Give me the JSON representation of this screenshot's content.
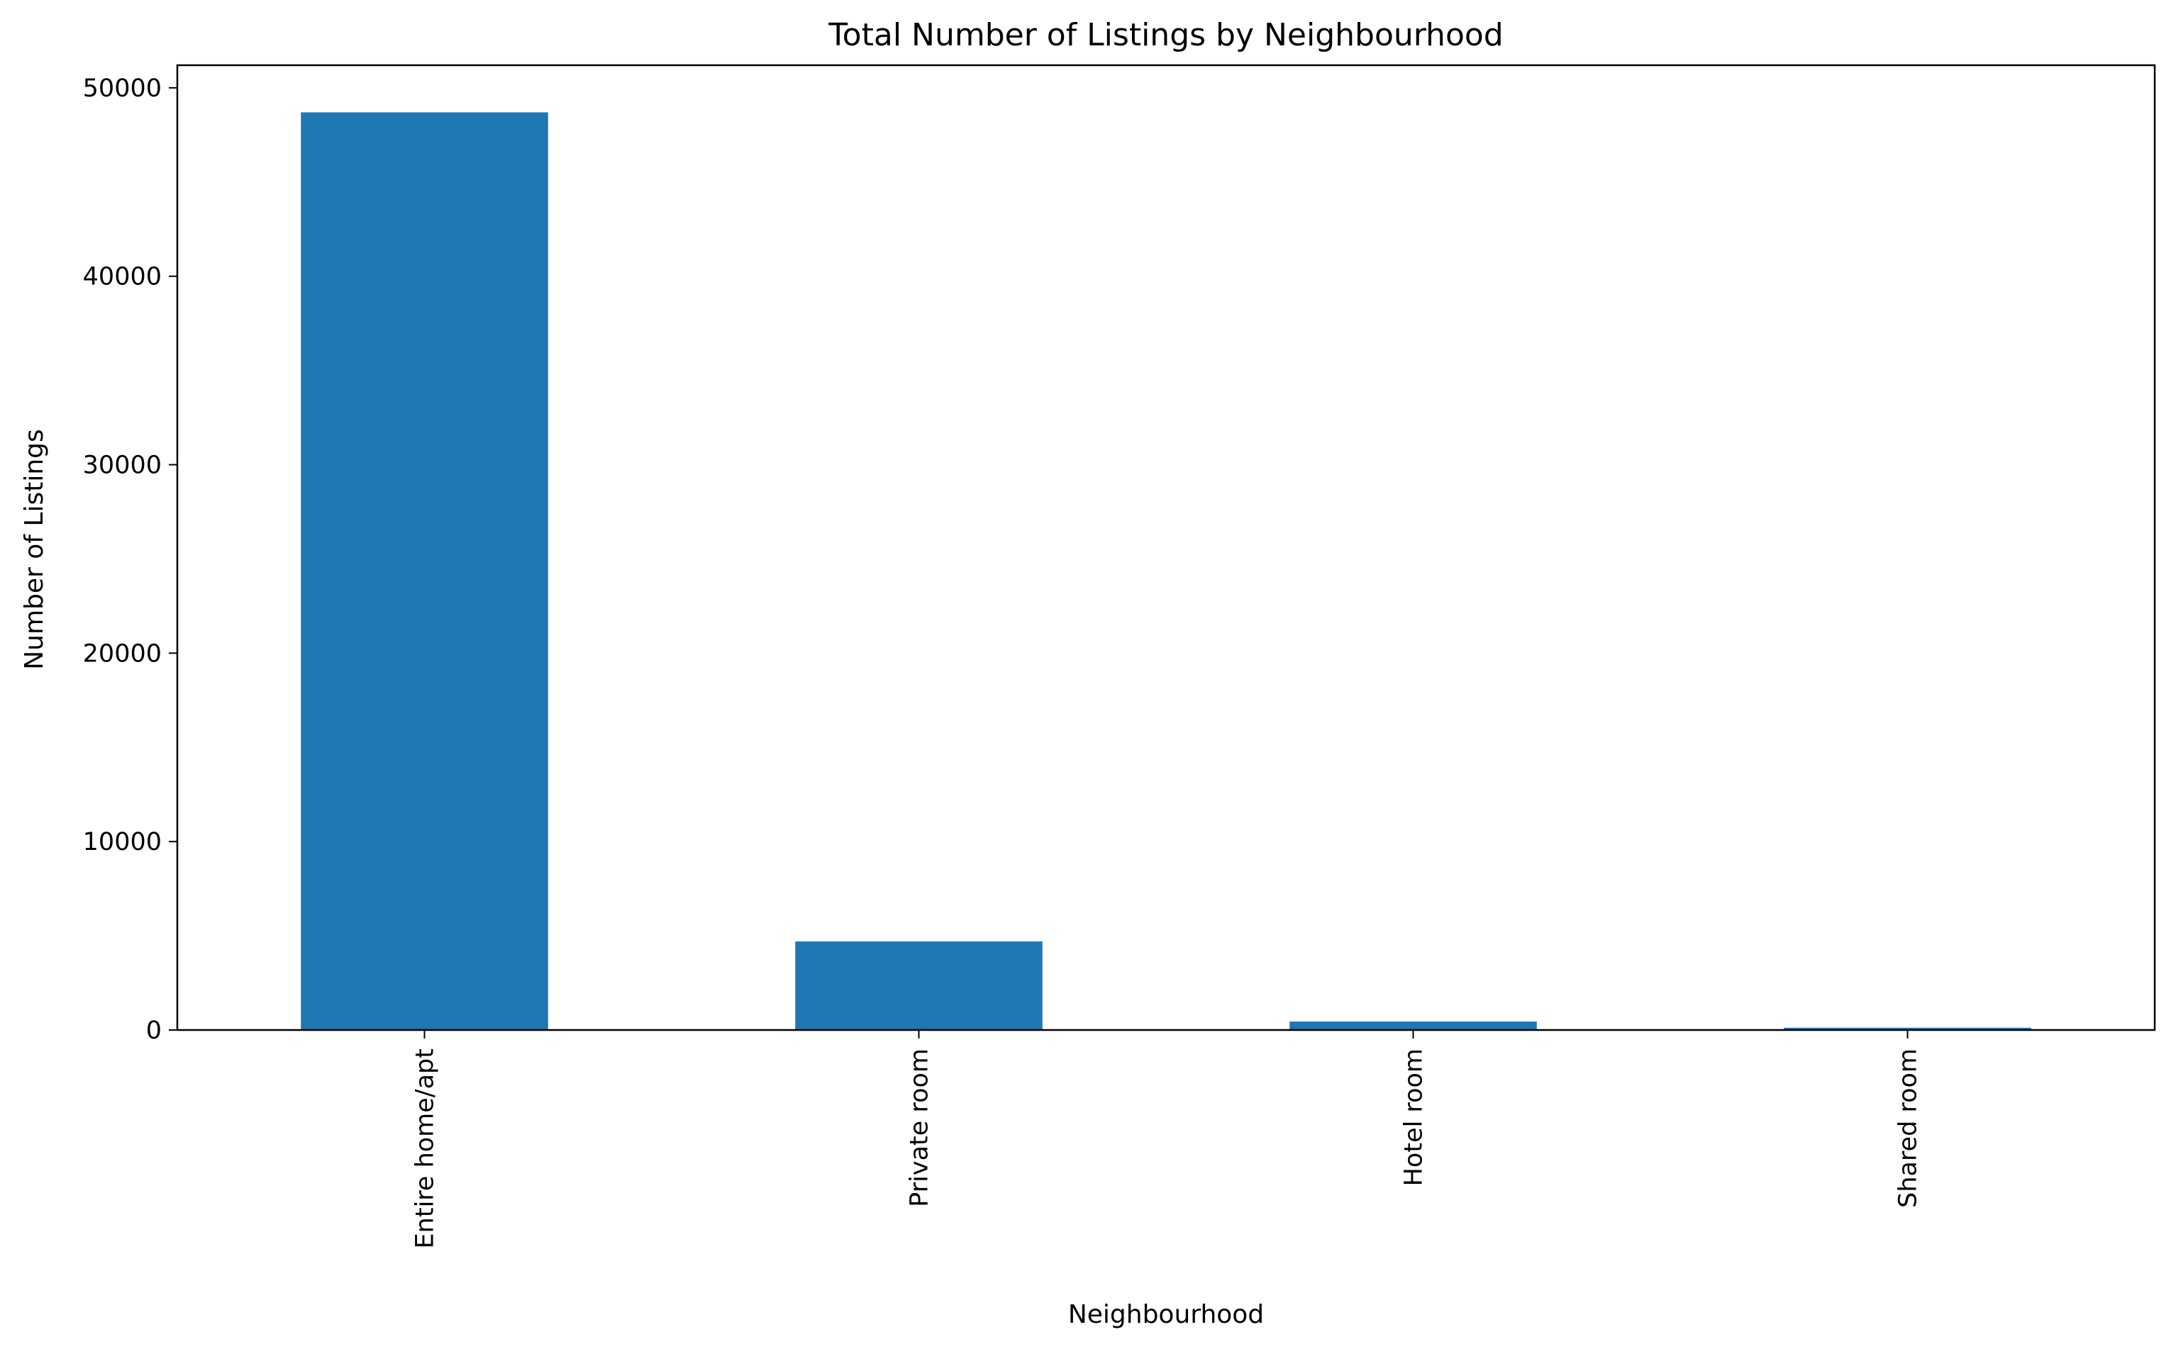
{
  "chart_data": {
    "type": "bar",
    "title": "Total Number of Listings by Neighbourhood",
    "xlabel": "Neighbourhood",
    "ylabel": "Number of Listings",
    "categories": [
      "Entire home/apt",
      "Private room",
      "Hotel room",
      "Shared room"
    ],
    "values": [
      48700,
      4700,
      450,
      120
    ],
    "ylim": [
      0,
      51200
    ],
    "yticks": [
      0,
      10000,
      20000,
      30000,
      40000,
      50000
    ],
    "grid": false,
    "legend": "none",
    "bar_color": "#1f77b4"
  }
}
